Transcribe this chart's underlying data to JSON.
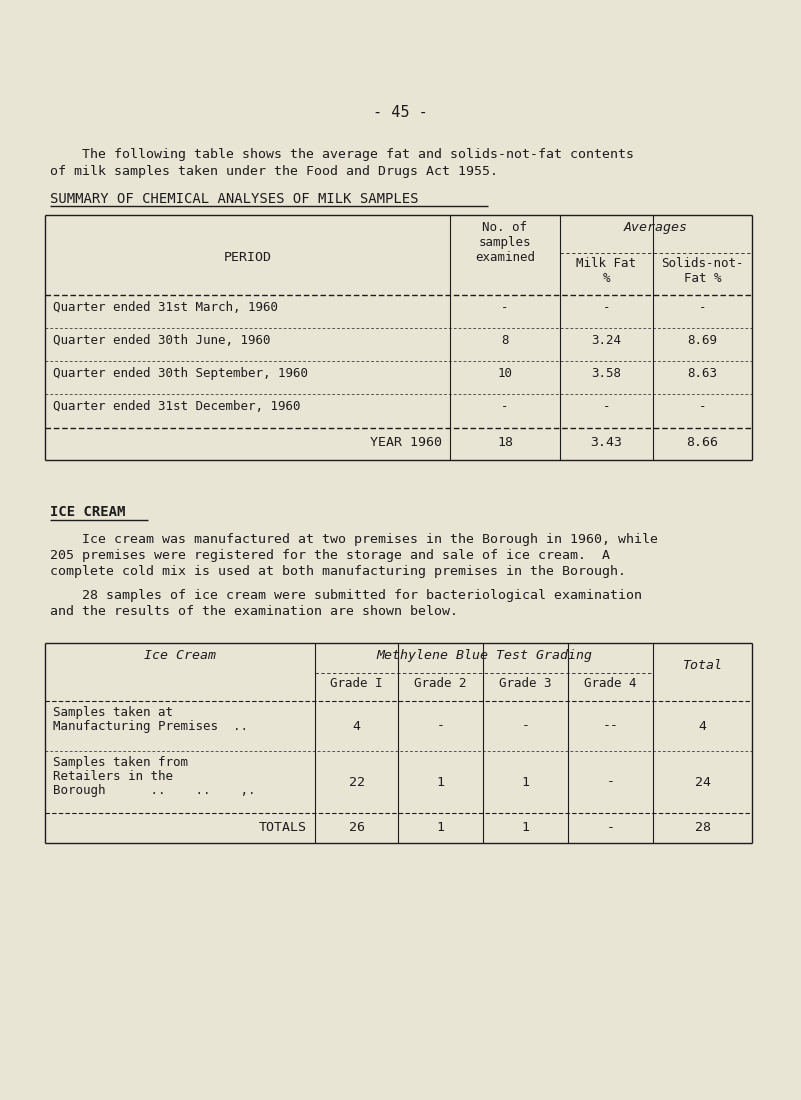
{
  "bg_color": "#e8e5d5",
  "page_number": "- 45 -",
  "intro_text_line1": "    The following table shows the average fat and solids-not-fat contents",
  "intro_text_line2": "of milk samples taken under the Food and Drugs Act 1955.",
  "table1_title": "SUMMARY OF CHEMICAL ANALYSES OF MILK SAMPLES",
  "table1_rows": [
    [
      "Quarter ended 31st March, 1960",
      "-",
      "-",
      "-"
    ],
    [
      "Quarter ended 30th June, 1960",
      "8",
      "3.24",
      "8.69"
    ],
    [
      "Quarter ended 30th September, 1960",
      "10",
      "3.58",
      "8.63"
    ],
    [
      "Quarter ended 31st December, 1960",
      "-",
      "-",
      "-"
    ]
  ],
  "table1_footer": [
    "YEAR 1960",
    "18",
    "3.43",
    "8.66"
  ],
  "ice_cream_heading": "ICE CREAM",
  "ice_cream_para1": [
    "    Ice cream was manufactured at two premises in the Borough in 1960, while",
    "205 premises were registered for the storage and sale of ice cream.  A",
    "complete cold mix is used at both manufacturing premises in the Borough."
  ],
  "ice_cream_para2": [
    "    28 samples of ice cream were submitted for bacteriological examination",
    "and the results of the examination are shown below."
  ],
  "table2_rows": [
    [
      "Samples taken at\nManufacturing Premises  ..",
      "4",
      "-",
      "-",
      "--",
      "4"
    ],
    [
      "Samples taken from\nRetailers in the\nBorough      ..    ..    ,.",
      "22",
      "1",
      "1",
      "-",
      "24"
    ]
  ],
  "table2_footer": [
    "TOTALS",
    "26",
    "1",
    "1",
    "-",
    "28"
  ],
  "font_color": "#1c1c1c"
}
